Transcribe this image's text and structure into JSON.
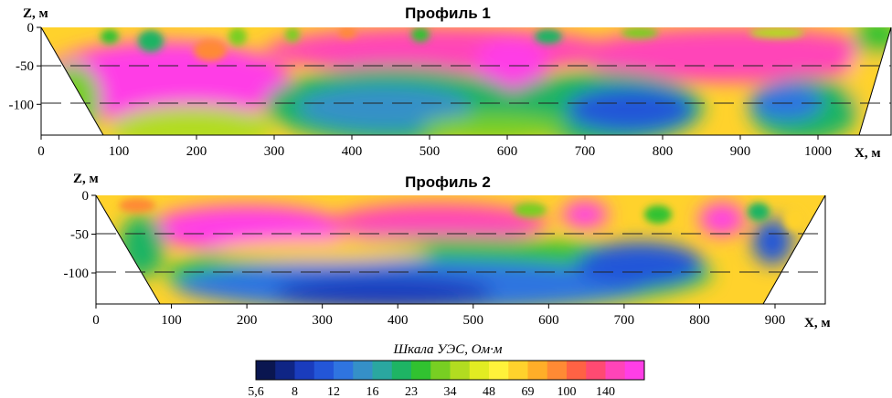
{
  "chart_data": [
    {
      "type": "heatmap",
      "title": "Профиль 1",
      "xlabel": "X, м",
      "ylabel": "Z, м",
      "xlim": [
        0,
        1080
      ],
      "ylim": [
        -140,
        0
      ],
      "x_ticks": [
        0,
        100,
        200,
        300,
        400,
        500,
        600,
        700,
        800,
        900,
        1000
      ],
      "y_ticks": [
        0,
        -50,
        -100
      ],
      "dashed_levels": [
        -50,
        -100
      ],
      "section_polygon": [
        [
          0,
          0
        ],
        [
          1080,
          0
        ],
        [
          1040,
          -140
        ],
        [
          80,
          -140
        ]
      ],
      "resistivity_samples": [
        {
          "x": 150,
          "z": -60,
          "value": 140
        },
        {
          "x": 400,
          "z": -20,
          "value": 140
        },
        {
          "x": 300,
          "z": -130,
          "value": 34
        },
        {
          "x": 420,
          "z": -95,
          "value": 16
        },
        {
          "x": 560,
          "z": -55,
          "value": 140
        },
        {
          "x": 720,
          "z": -105,
          "value": 12
        },
        {
          "x": 800,
          "z": -30,
          "value": 140
        },
        {
          "x": 970,
          "z": -100,
          "value": 12
        }
      ]
    },
    {
      "type": "heatmap",
      "title": "Профиль 2",
      "xlabel": "X, м",
      "ylabel": "Z, м",
      "xlim": [
        0,
        940
      ],
      "ylim": [
        -140,
        0
      ],
      "x_ticks": [
        0,
        100,
        200,
        300,
        400,
        500,
        600,
        700,
        800,
        900
      ],
      "y_ticks": [
        0,
        -50,
        -100
      ],
      "dashed_levels": [
        -50,
        -100
      ],
      "section_polygon": [
        [
          0,
          0
        ],
        [
          940,
          0
        ],
        [
          880,
          -140
        ],
        [
          80,
          -140
        ]
      ],
      "resistivity_samples": [
        {
          "x": 70,
          "z": -80,
          "value": 23
        },
        {
          "x": 270,
          "z": -35,
          "value": 140
        },
        {
          "x": 420,
          "z": -125,
          "value": 8
        },
        {
          "x": 480,
          "z": -40,
          "value": 140
        },
        {
          "x": 640,
          "z": -20,
          "value": 140
        },
        {
          "x": 700,
          "z": -95,
          "value": 12
        },
        {
          "x": 800,
          "z": -30,
          "value": 140
        },
        {
          "x": 870,
          "z": -60,
          "value": 12
        }
      ]
    }
  ],
  "color_scale": {
    "title": "Шкала УЭС, Ом·м",
    "tick_labels": [
      "5,6",
      "8",
      "12",
      "16",
      "23",
      "34",
      "48",
      "69",
      "100",
      "140"
    ],
    "colors": [
      "#0a1650",
      "#0f2585",
      "#1a3cbd",
      "#2356d8",
      "#2f74e0",
      "#3590c8",
      "#2aa7a0",
      "#1eb464",
      "#31c230",
      "#78cf22",
      "#b2dc20",
      "#e2ec22",
      "#fff23a",
      "#ffd22c",
      "#ffae28",
      "#ff8a34",
      "#ff6244",
      "#ff4a72",
      "#ff44b8",
      "#ff3ee6"
    ]
  }
}
